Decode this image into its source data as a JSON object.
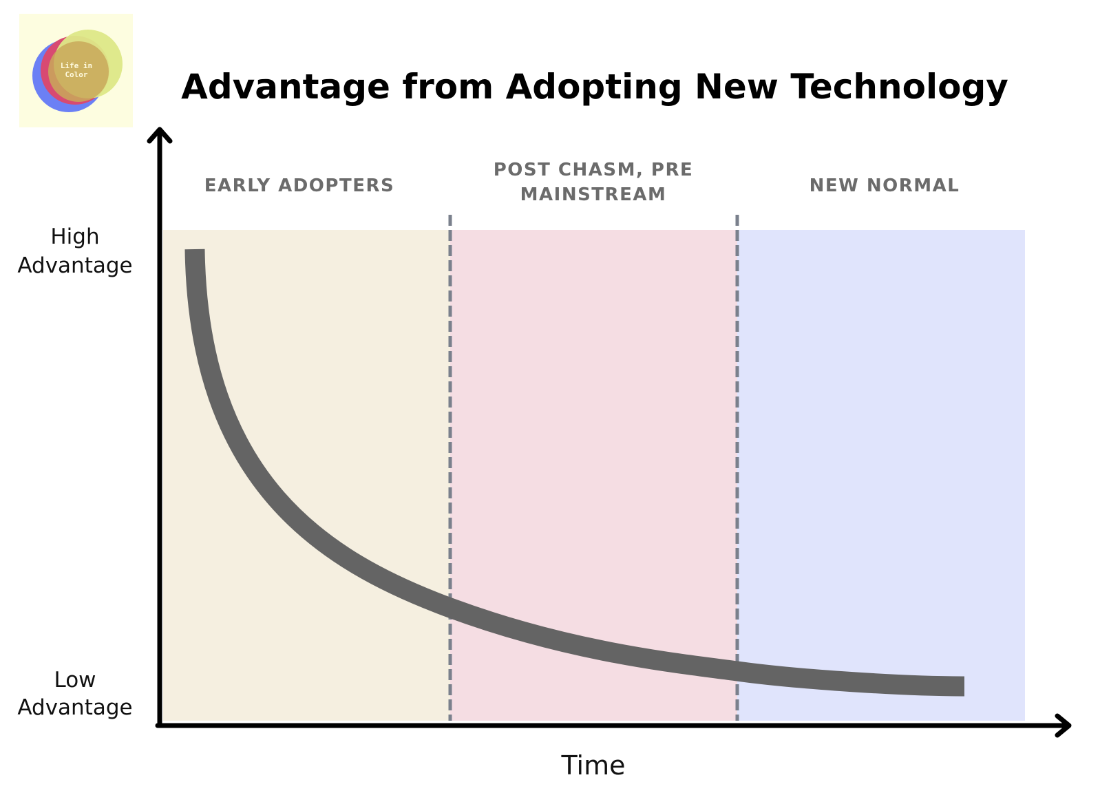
{
  "logo": {
    "lines": [
      "Life in",
      "Color"
    ]
  },
  "title": "Advantage from Adopting New Technology",
  "phases": [
    {
      "lines": [
        "EARLY ADOPTERS"
      ]
    },
    {
      "lines": [
        "POST CHASM, PRE",
        "MAINSTREAM"
      ]
    },
    {
      "lines": [
        "NEW NORMAL"
      ]
    }
  ],
  "y_axis": {
    "high": [
      "High",
      "Advantage"
    ],
    "low": [
      "Low",
      "Advantage"
    ]
  },
  "x_axis": {
    "label": "Time"
  }
}
